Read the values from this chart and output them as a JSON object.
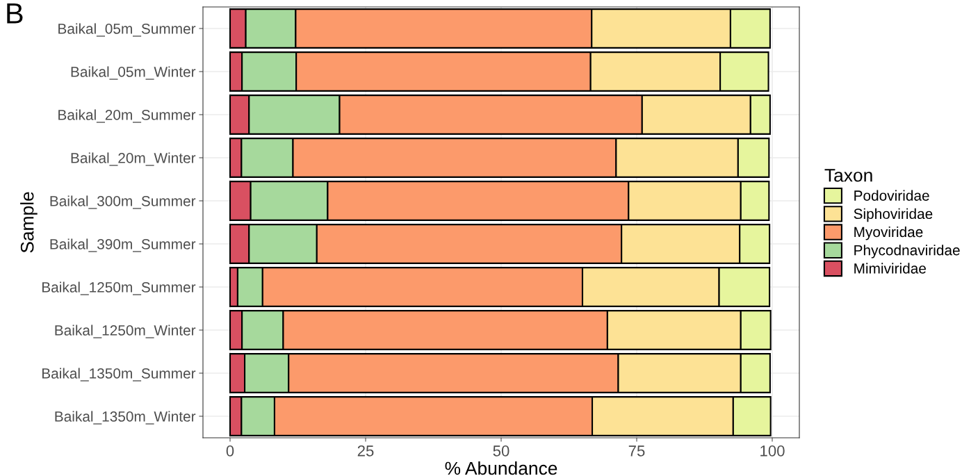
{
  "chart_data": {
    "type": "bar",
    "orientation": "horizontal",
    "stacked": true,
    "categories": [
      "Baikal_05m_Summer",
      "Baikal_05m_Winter",
      "Baikal_20m_Summer",
      "Baikal_20m_Winter",
      "Baikal_300m_Summer",
      "Baikal_390m_Summer",
      "Baikal_1250m_Summer",
      "Baikal_1250m_Winter",
      "Baikal_1350m_Summer",
      "Baikal_1350m_Winter"
    ],
    "series": [
      {
        "name": "Mimiviridae",
        "color": "#d95061",
        "values": [
          2.9,
          2.2,
          3.5,
          2.1,
          3.8,
          3.5,
          1.4,
          2.2,
          2.7,
          2.1
        ]
      },
      {
        "name": "Phycodnaviridae",
        "color": "#a6d99c",
        "values": [
          9.2,
          10.0,
          16.7,
          9.5,
          14.2,
          12.5,
          4.6,
          7.6,
          8.1,
          6.1
        ]
      },
      {
        "name": "Myoviridae",
        "color": "#fc9a6b",
        "values": [
          54.6,
          54.3,
          55.8,
          59.6,
          55.5,
          56.2,
          59.0,
          59.8,
          60.8,
          58.6
        ]
      },
      {
        "name": "Siphoviridae",
        "color": "#fde295",
        "values": [
          25.6,
          23.9,
          20.0,
          22.5,
          20.7,
          21.8,
          25.2,
          24.6,
          22.6,
          26.0
        ]
      },
      {
        "name": "Podoviridae",
        "color": "#e6f59d",
        "values": [
          7.3,
          8.9,
          3.6,
          5.7,
          5.2,
          5.5,
          9.3,
          5.5,
          5.4,
          6.9
        ]
      }
    ],
    "xlim": [
      -5,
      105
    ],
    "xticks": [
      0,
      25,
      50,
      75,
      100
    ],
    "xlabel": "% Abundance",
    "ylabel": "Sample",
    "legend_title": "Taxon",
    "legend": "right",
    "grid": true,
    "annotations": [
      "B"
    ]
  }
}
